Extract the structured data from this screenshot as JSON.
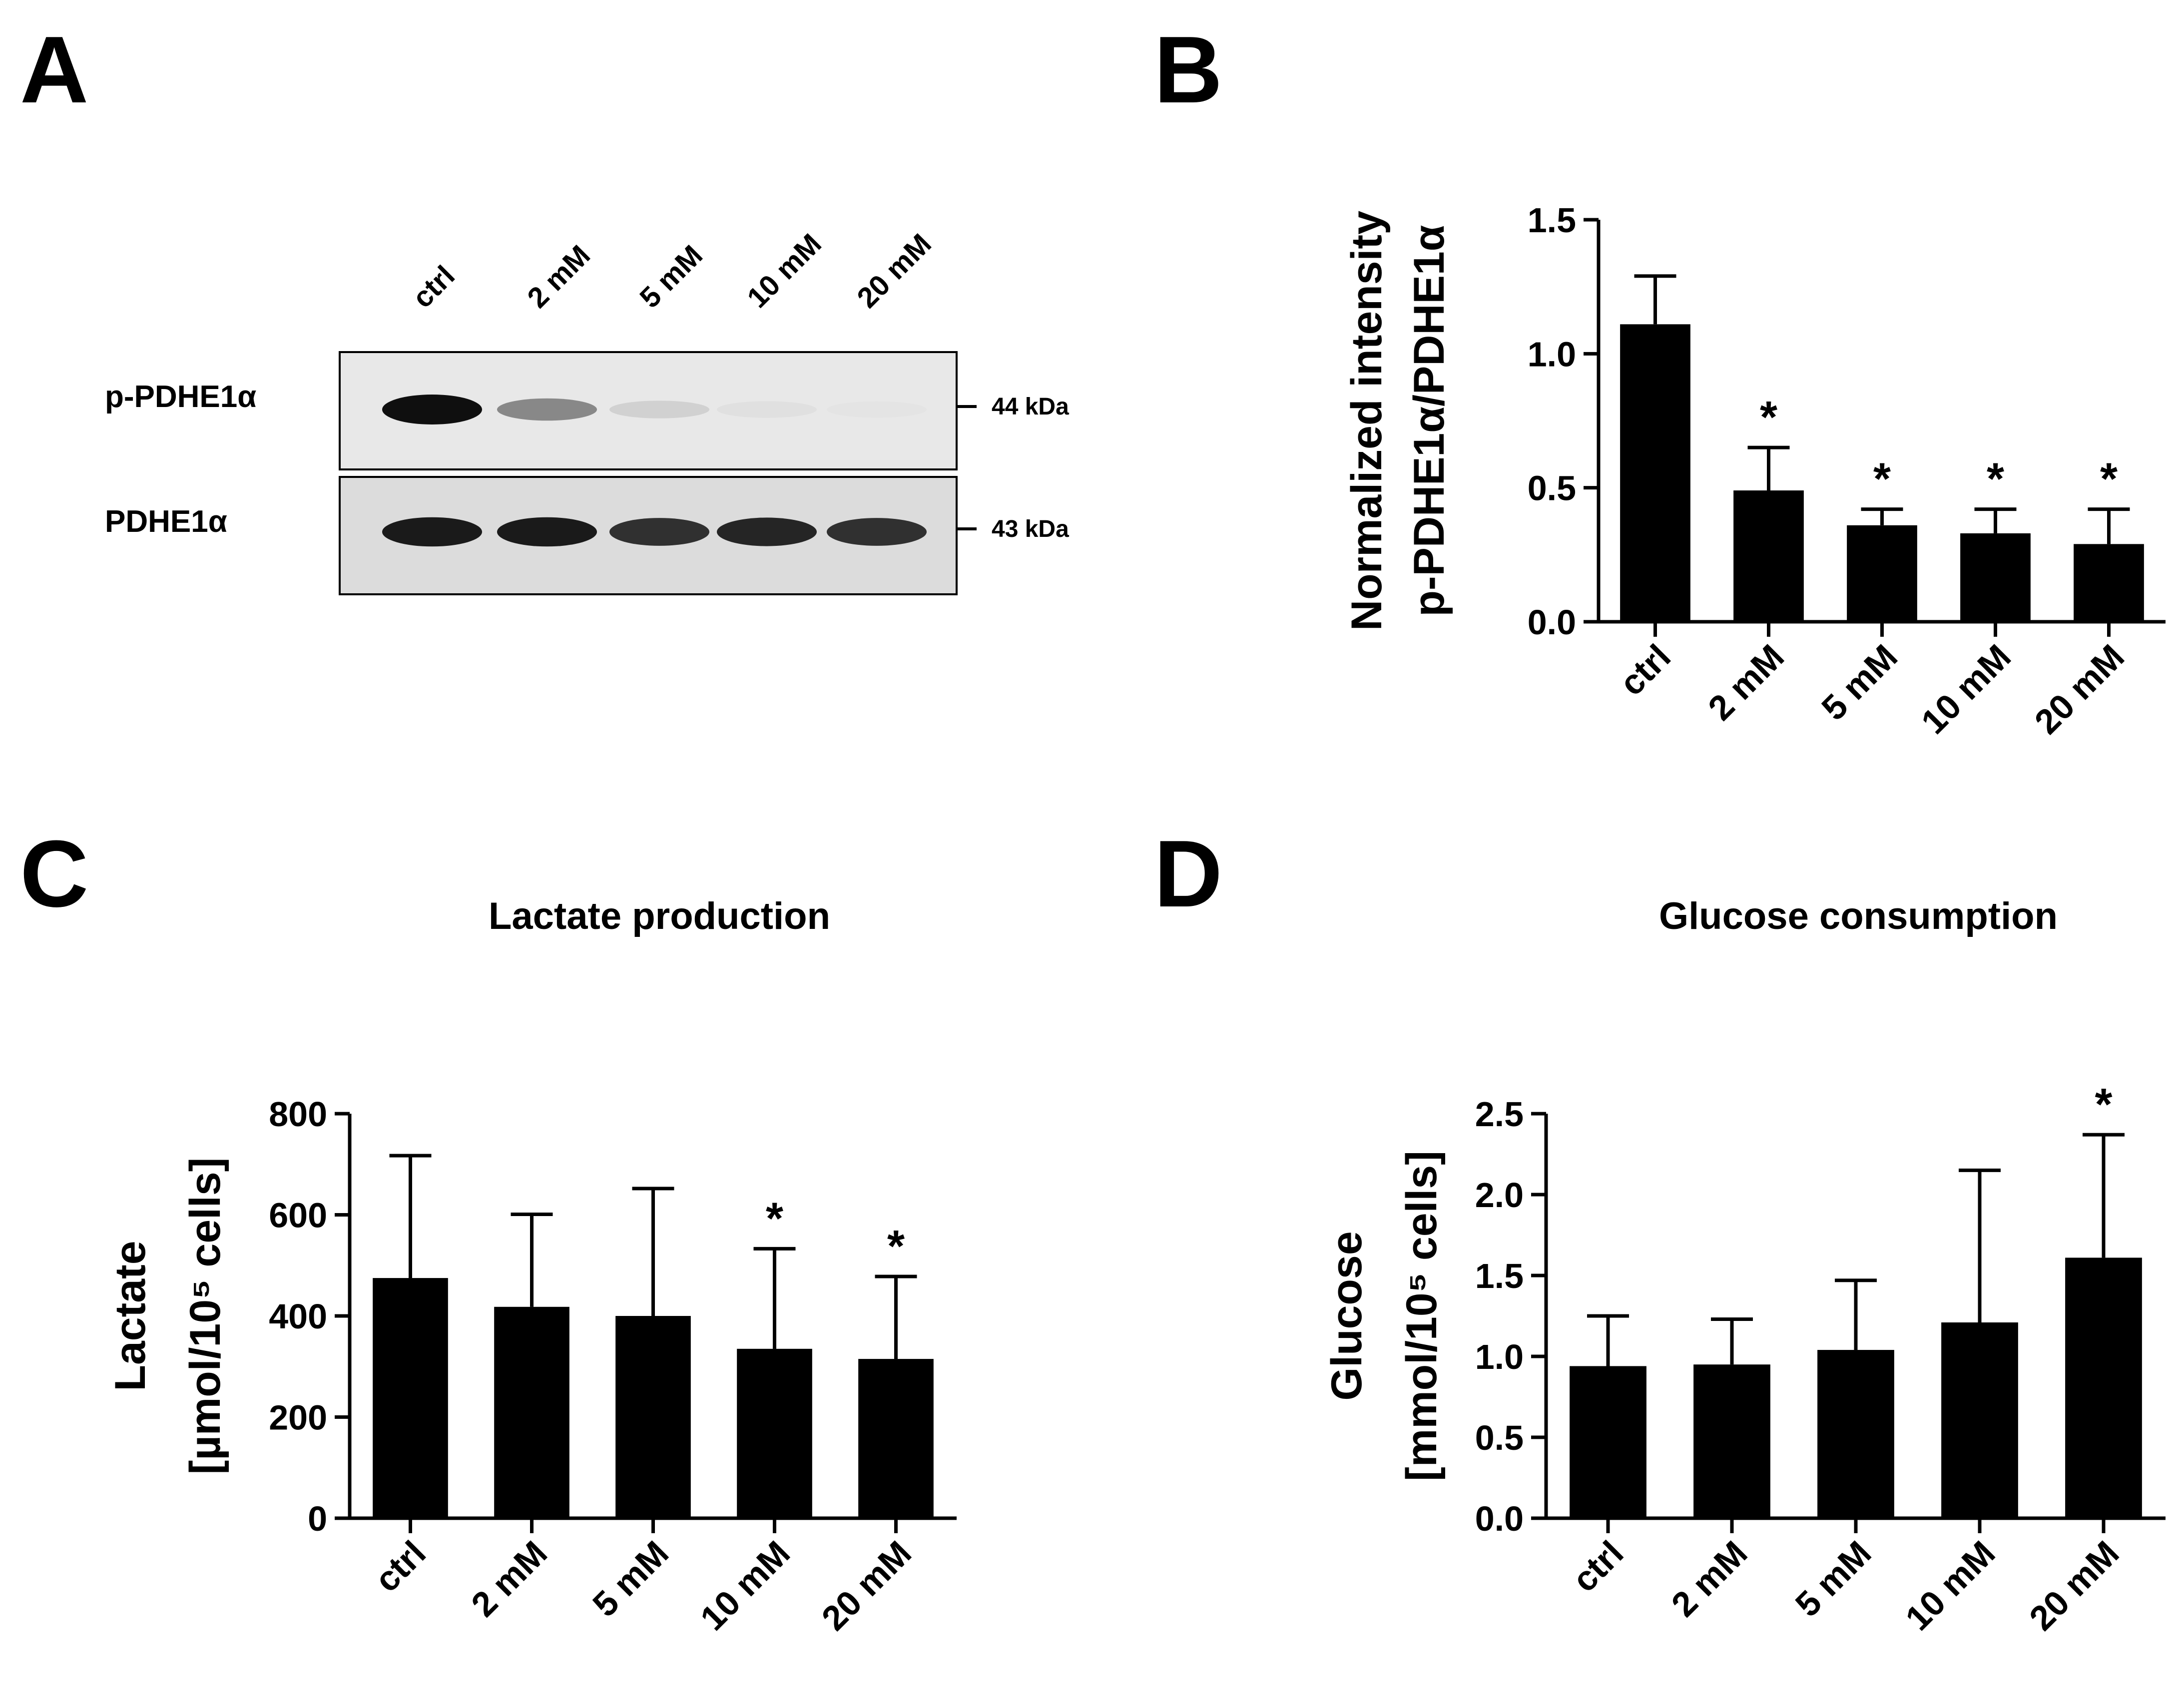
{
  "panels": {
    "a": "A",
    "b": "B",
    "c": "C",
    "d": "D"
  },
  "blot": {
    "lanes": [
      "ctrl",
      "2 mM",
      "5 mM",
      "10 mM",
      "20 mM"
    ],
    "rows": [
      {
        "label": "p-PDHE1α",
        "mw": "44 kDa",
        "intensities": [
          1.0,
          0.45,
          0.12,
          0.05,
          0.03
        ]
      },
      {
        "label": "PDHE1α",
        "mw": "43 kDa",
        "intensities": [
          0.95,
          0.95,
          0.85,
          0.9,
          0.85
        ]
      }
    ]
  },
  "chart_data": [
    {
      "id": "b",
      "type": "bar",
      "title": "",
      "ylabel_line1": "Normalized intensity",
      "ylabel_line2": "p-PDHE1α/PDHE1α",
      "xlabel": "",
      "categories": [
        "ctrl",
        "2 mM",
        "5 mM",
        "10 mM",
        "20 mM"
      ],
      "values": [
        1.11,
        0.49,
        0.36,
        0.33,
        0.29
      ],
      "errors": [
        0.18,
        0.16,
        0.06,
        0.09,
        0.13
      ],
      "significance": [
        "",
        "*",
        "*",
        "*",
        "*"
      ],
      "ylim": [
        0,
        1.5
      ],
      "yticks": [
        0.0,
        0.5,
        1.0,
        1.5
      ],
      "ytick_labels": [
        "0.0",
        "0.5",
        "1.0",
        "1.5"
      ]
    },
    {
      "id": "c",
      "type": "bar",
      "title": "Lactate production",
      "ylabel_line1": "Lactate",
      "ylabel_line2": "[µmol/10⁵ cells]",
      "xlabel": "",
      "categories": [
        "ctrl",
        "2 mM",
        "5 mM",
        "10 mM",
        "20 mM"
      ],
      "values": [
        475,
        418,
        400,
        335,
        315
      ],
      "errors": [
        242,
        183,
        252,
        198,
        163
      ],
      "significance": [
        "",
        "",
        "",
        "*",
        "*"
      ],
      "ylim": [
        0,
        800
      ],
      "yticks": [
        0,
        200,
        400,
        600,
        800
      ],
      "ytick_labels": [
        "0",
        "200",
        "400",
        "600",
        "800"
      ]
    },
    {
      "id": "d",
      "type": "bar",
      "title": "Glucose consumption",
      "ylabel_line1": "Glucose",
      "ylabel_line2": "[mmol/10⁵ cells]",
      "xlabel": "",
      "categories": [
        "ctrl",
        "2 mM",
        "5 mM",
        "10 mM",
        "20 mM"
      ],
      "values": [
        0.94,
        0.95,
        1.04,
        1.21,
        1.61
      ],
      "errors": [
        0.31,
        0.28,
        0.43,
        0.94,
        0.76
      ],
      "significance": [
        "",
        "",
        "",
        "",
        "*"
      ],
      "ylim": [
        0,
        2.5
      ],
      "yticks": [
        0.0,
        0.5,
        1.0,
        1.5,
        2.0,
        2.5
      ],
      "ytick_labels": [
        "0.0",
        "0.5",
        "1.0",
        "1.5",
        "2.0",
        "2.5"
      ]
    }
  ]
}
